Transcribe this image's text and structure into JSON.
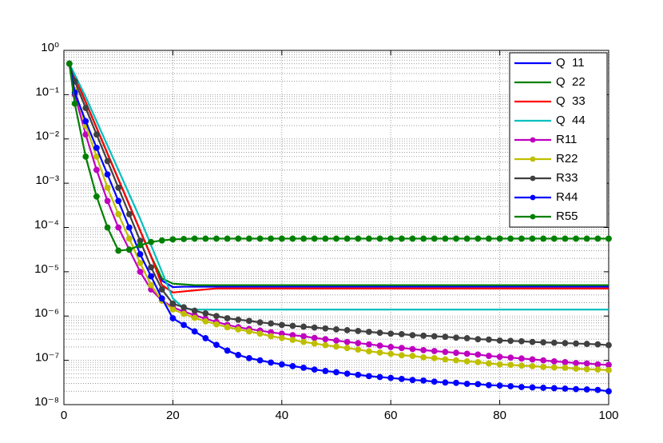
{
  "chart_data": {
    "type": "line",
    "yscale": "log",
    "grid": true,
    "minor_grid": true,
    "legend": "upper right",
    "xlim": [
      0,
      100
    ],
    "xticks": [
      0,
      20,
      40,
      60,
      80,
      100
    ],
    "ylim": [
      1e-08,
      1
    ],
    "yticks": [
      {
        "value": 1e-08,
        "label": "10⁻⁸"
      },
      {
        "value": 1e-07,
        "label": "10⁻⁷"
      },
      {
        "value": 1e-06,
        "label": "10⁻⁶"
      },
      {
        "value": 1e-05,
        "label": "10⁻⁵"
      },
      {
        "value": 0.0001,
        "label": "10⁻⁴"
      },
      {
        "value": 0.001,
        "label": "10⁻³"
      },
      {
        "value": 0.01,
        "label": "10⁻²"
      },
      {
        "value": 0.1,
        "label": "10⁻¹"
      },
      {
        "value": 1,
        "label": "10⁰"
      }
    ],
    "x": [
      1,
      2,
      4,
      6,
      8,
      10,
      12,
      14,
      16,
      18,
      20,
      22,
      24,
      26,
      28,
      30,
      32,
      34,
      36,
      38,
      40,
      42,
      44,
      46,
      48,
      50,
      52,
      54,
      56,
      58,
      60,
      62,
      64,
      66,
      68,
      70,
      72,
      74,
      76,
      78,
      80,
      82,
      84,
      86,
      88,
      90,
      92,
      94,
      96,
      98,
      100
    ],
    "series": [
      {
        "name": "Q  11",
        "color": "#0000ff",
        "marker": false,
        "values": [
          0.5,
          0.257,
          0.0676,
          0.0178,
          0.00468,
          0.00123,
          0.000324,
          8.5e-05,
          2.24e-05,
          6.3e-06,
          4.5e-06,
          4.6e-06,
          4.6e-06,
          4.6e-06,
          4.6e-06,
          4.6e-06,
          4.6e-06,
          4.6e-06,
          4.6e-06,
          4.6e-06,
          4.6e-06,
          4.6e-06,
          4.6e-06,
          4.6e-06,
          4.6e-06,
          4.6e-06,
          4.6e-06,
          4.6e-06,
          4.6e-06,
          4.6e-06,
          4.6e-06,
          4.6e-06,
          4.6e-06,
          4.6e-06,
          4.6e-06,
          4.6e-06,
          4.6e-06,
          4.6e-06,
          4.6e-06,
          4.6e-06,
          4.6e-06,
          4.6e-06,
          4.6e-06,
          4.6e-06,
          4.6e-06,
          4.6e-06,
          4.6e-06,
          4.6e-06,
          4.6e-06,
          4.6e-06,
          4.6e-06
        ]
      },
      {
        "name": "Q  22",
        "color": "#008000",
        "marker": false,
        "values": [
          0.5,
          0.257,
          0.0676,
          0.0178,
          0.00468,
          0.00123,
          0.000324,
          8.5e-05,
          2.24e-05,
          7.1e-06,
          5.4e-06,
          5.2e-06,
          5e-06,
          5e-06,
          5e-06,
          5e-06,
          5e-06,
          5e-06,
          5e-06,
          5e-06,
          5e-06,
          5e-06,
          5e-06,
          5e-06,
          5e-06,
          5e-06,
          5e-06,
          5e-06,
          5e-06,
          5e-06,
          5e-06,
          5e-06,
          5e-06,
          5e-06,
          5e-06,
          5e-06,
          5e-06,
          5e-06,
          5e-06,
          5e-06,
          5e-06,
          5e-06,
          5e-06,
          5e-06,
          5e-06,
          5e-06,
          5e-06,
          5e-06,
          5e-06,
          5e-06,
          5e-06
        ]
      },
      {
        "name": "Q  33",
        "color": "#ff0000",
        "marker": false,
        "values": [
          0.5,
          0.257,
          0.0676,
          0.0178,
          0.00468,
          0.00123,
          0.000324,
          8.5e-05,
          2.24e-05,
          5e-06,
          3.4e-06,
          3.6e-06,
          3.8e-06,
          4e-06,
          4.2e-06,
          4.2e-06,
          4.2e-06,
          4.2e-06,
          4.2e-06,
          4.2e-06,
          4.2e-06,
          4.2e-06,
          4.2e-06,
          4.2e-06,
          4.2e-06,
          4.2e-06,
          4.2e-06,
          4.2e-06,
          4.2e-06,
          4.2e-06,
          4.2e-06,
          4.2e-06,
          4.2e-06,
          4.2e-06,
          4.2e-06,
          4.2e-06,
          4.2e-06,
          4.2e-06,
          4.2e-06,
          4.2e-06,
          4.2e-06,
          4.2e-06,
          4.2e-06,
          4.2e-06,
          4.2e-06,
          4.2e-06,
          4.2e-06,
          4.2e-06,
          4.2e-06,
          4.2e-06,
          4.2e-06
        ]
      },
      {
        "name": "Q  44",
        "color": "#00bfbf",
        "marker": false,
        "values": [
          0.5,
          0.282,
          0.0891,
          0.0251,
          0.00708,
          0.002,
          0.000562,
          0.000158,
          3.98e-05,
          1e-05,
          2.51e-06,
          1.5e-06,
          1.4e-06,
          1.4e-06,
          1.4e-06,
          1.4e-06,
          1.4e-06,
          1.4e-06,
          1.4e-06,
          1.4e-06,
          1.4e-06,
          1.4e-06,
          1.4e-06,
          1.4e-06,
          1.4e-06,
          1.4e-06,
          1.4e-06,
          1.4e-06,
          1.4e-06,
          1.4e-06,
          1.4e-06,
          1.4e-06,
          1.4e-06,
          1.4e-06,
          1.4e-06,
          1.4e-06,
          1.4e-06,
          1.4e-06,
          1.4e-06,
          1.4e-06,
          1.4e-06,
          1.4e-06,
          1.4e-06,
          1.4e-06,
          1.4e-06,
          1.4e-06,
          1.4e-06,
          1.4e-06,
          1.4e-06,
          1.4e-06,
          1.4e-06
        ]
      },
      {
        "name": "R11",
        "color": "#bf00bf",
        "marker": true,
        "values": [
          0.5,
          0.1,
          0.0126,
          0.002,
          0.000398,
          0.0001,
          3.16e-05,
          1e-05,
          3.98e-06,
          2.24e-06,
          1.58e-06,
          1.26e-06,
          1.05e-06,
          8.7e-07,
          7.4e-07,
          6.3e-07,
          5.6e-07,
          5.1e-07,
          4.7e-07,
          4.3e-07,
          4e-07,
          3.7e-07,
          3.5e-07,
          3.2e-07,
          3e-07,
          2.8e-07,
          2.6e-07,
          2.45e-07,
          2.3e-07,
          2.15e-07,
          2e-07,
          1.9e-07,
          1.8e-07,
          1.7e-07,
          1.62e-07,
          1.55e-07,
          1.48e-07,
          1.41e-07,
          1.35e-07,
          1.26e-07,
          1.2e-07,
          1.15e-07,
          1.1e-07,
          1.05e-07,
          1e-07,
          9.5e-08,
          9.1e-08,
          8.7e-08,
          8.5e-08,
          8.1e-08,
          7.9e-08
        ]
      },
      {
        "name": "R22",
        "color": "#bfbf00",
        "marker": true,
        "values": [
          0.5,
          0.126,
          0.02,
          0.00398,
          0.00079,
          0.0002,
          5.6e-05,
          1.58e-05,
          5e-06,
          2.24e-06,
          1.41e-06,
          1.12e-06,
          9.1e-07,
          7.6e-07,
          6.5e-07,
          5.6e-07,
          5e-07,
          4.5e-07,
          4e-07,
          3.5e-07,
          3.2e-07,
          2.9e-07,
          2.6e-07,
          2.4e-07,
          2.2e-07,
          2.05e-07,
          1.9e-07,
          1.75e-07,
          1.6e-07,
          1.5e-07,
          1.4e-07,
          1.3e-07,
          1.26e-07,
          1.17e-07,
          1.12e-07,
          1.05e-07,
          1e-07,
          9.5e-08,
          9.1e-08,
          8.5e-08,
          8.1e-08,
          7.9e-08,
          7.6e-08,
          7.4e-08,
          7.1e-08,
          6.9e-08,
          6.8e-08,
          6.5e-08,
          6.3e-08,
          6.2e-08,
          6e-08
        ]
      },
      {
        "name": "R33",
        "color": "#404040",
        "marker": true,
        "values": [
          0.5,
          0.2,
          0.05,
          0.0126,
          0.00316,
          0.00079,
          0.0002,
          5e-05,
          1.26e-05,
          3.98e-06,
          1.9e-06,
          1.58e-06,
          1.32e-06,
          1.15e-06,
          1e-06,
          8.9e-07,
          8.3e-07,
          7.8e-07,
          7.2e-07,
          6.8e-07,
          6.3e-07,
          6e-07,
          5.75e-07,
          5.5e-07,
          5.25e-07,
          5e-07,
          4.8e-07,
          4.6e-07,
          4.4e-07,
          4.2e-07,
          4e-07,
          3.9e-07,
          3.7e-07,
          3.6e-07,
          3.5e-07,
          3.4e-07,
          3.25e-07,
          3.16e-07,
          3e-07,
          2.95e-07,
          2.8e-07,
          2.75e-07,
          2.7e-07,
          2.6e-07,
          2.55e-07,
          2.5e-07,
          2.45e-07,
          2.4e-07,
          2.35e-07,
          2.3e-07,
          2.2e-07
        ]
      },
      {
        "name": "R44",
        "color": "#0000ff",
        "marker": true,
        "values": [
          0.5,
          0.112,
          0.0251,
          0.0063,
          0.00158,
          0.000398,
          0.0001,
          2.5e-05,
          7.9e-06,
          2.5e-06,
          8.9e-07,
          6.3e-07,
          4.5e-07,
          3.16e-07,
          2.24e-07,
          1.66e-07,
          1.32e-07,
          1.12e-07,
          1e-07,
          8.9e-08,
          8.1e-08,
          7.4e-08,
          6.8e-08,
          6.2e-08,
          5.75e-08,
          5.4e-08,
          5e-08,
          4.7e-08,
          4.4e-08,
          4.2e-08,
          4e-08,
          3.8e-08,
          3.6e-08,
          3.5e-08,
          3.3e-08,
          3.16e-08,
          3.1e-08,
          2.95e-08,
          2.9e-08,
          2.75e-08,
          2.7e-08,
          2.6e-08,
          2.5e-08,
          2.45e-08,
          2.4e-08,
          2.35e-08,
          2.3e-08,
          2.24e-08,
          2.2e-08,
          2.15e-08,
          2e-08
        ]
      },
      {
        "name": "R55",
        "color": "#008000",
        "marker": true,
        "values": [
          0.5,
          0.063,
          0.00398,
          0.0005,
          0.0001,
          3e-05,
          3.16e-05,
          3.98e-05,
          4.7e-05,
          5.1e-05,
          5.4e-05,
          5.5e-05,
          5.6e-05,
          5.6e-05,
          5.6e-05,
          5.6e-05,
          5.6e-05,
          5.6e-05,
          5.6e-05,
          5.6e-05,
          5.6e-05,
          5.6e-05,
          5.6e-05,
          5.6e-05,
          5.6e-05,
          5.6e-05,
          5.6e-05,
          5.6e-05,
          5.6e-05,
          5.6e-05,
          5.6e-05,
          5.6e-05,
          5.6e-05,
          5.6e-05,
          5.6e-05,
          5.6e-05,
          5.6e-05,
          5.6e-05,
          5.6e-05,
          5.6e-05,
          5.6e-05,
          5.6e-05,
          5.6e-05,
          5.6e-05,
          5.6e-05,
          5.6e-05,
          5.6e-05,
          5.6e-05,
          5.6e-05,
          5.6e-05,
          5.6e-05
        ]
      }
    ]
  }
}
